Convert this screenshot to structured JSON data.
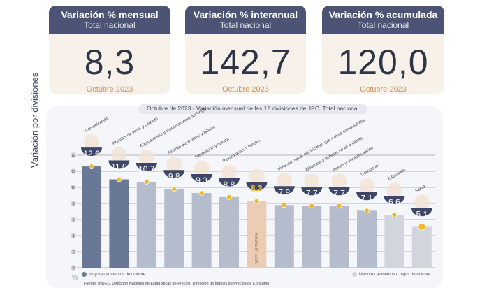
{
  "cards": [
    {
      "title": "Variación % mensual",
      "subtitle": "Total nacional",
      "value": "8,3",
      "date": "Octubre 2023"
    },
    {
      "title": "Variación % interanual",
      "subtitle": "Total nacional",
      "value": "142,7",
      "date": "Octubre 2023"
    },
    {
      "title": "Variación % acumulada",
      "subtitle": "Total nacional",
      "value": "120,0",
      "date": "Octubre 2023"
    }
  ],
  "chart_data": {
    "type": "bar",
    "title": "Octubre de 2023 - Variación mensual de las 12 divisiones del IPC. Total nacional",
    "ylabel": "Variación por divisiones",
    "yunit": "%",
    "ylim": [
      0,
      14
    ],
    "yticks": [
      0,
      2,
      4,
      6,
      8,
      10,
      12,
      14
    ],
    "grid": true,
    "categories": [
      "Comunicación",
      "Prendas de vestir y calzado",
      "Equipamiento y mantenimiento del hogar",
      "Bebidas alcohólicas y tabaco",
      "Recreación y cultura",
      "Restaurantes y hoteles",
      "NIVEL GENERAL",
      "Vivienda, agua, electricidad, gas y otros combustibles",
      "Alimentos y bebidas no alcohólicas",
      "Bienes y servicios varios",
      "Transporte",
      "Educación",
      "Salud"
    ],
    "values": [
      12.6,
      11.0,
      10.7,
      9.8,
      9.3,
      8.8,
      8.3,
      7.8,
      7.7,
      7.7,
      7.1,
      6.6,
      5.1
    ],
    "value_labels": [
      "12,6",
      "11,0",
      "10,7",
      "9,8",
      "9,3",
      "8,8",
      "8,3",
      "7,8",
      "7,7",
      "7,7",
      "7,1",
      "6,6",
      "5,1"
    ],
    "groups": [
      "top",
      "top",
      "mid",
      "mid",
      "mid",
      "mid",
      "general",
      "mid",
      "mid",
      "mid",
      "mid",
      "low",
      "low"
    ],
    "colors": {
      "top": "#6a7898",
      "mid": "#b5bdcc",
      "general": "#ebcdb6",
      "low": "#d2d6dc",
      "bubble": "#3f4768",
      "marker": "#f0b72a",
      "general_text": "#f5c542"
    },
    "legend": [
      {
        "label": "Mayores aumentos de octubre.",
        "color": "#6a7898"
      },
      {
        "label": "Menores aumentos o bajas de octubre.",
        "color": "#d2d6dc"
      }
    ],
    "source": "Fuente: INDEC, Dirección Nacional de Estadísticas de Precios. Dirección de Índices de Precios de Consumo."
  }
}
